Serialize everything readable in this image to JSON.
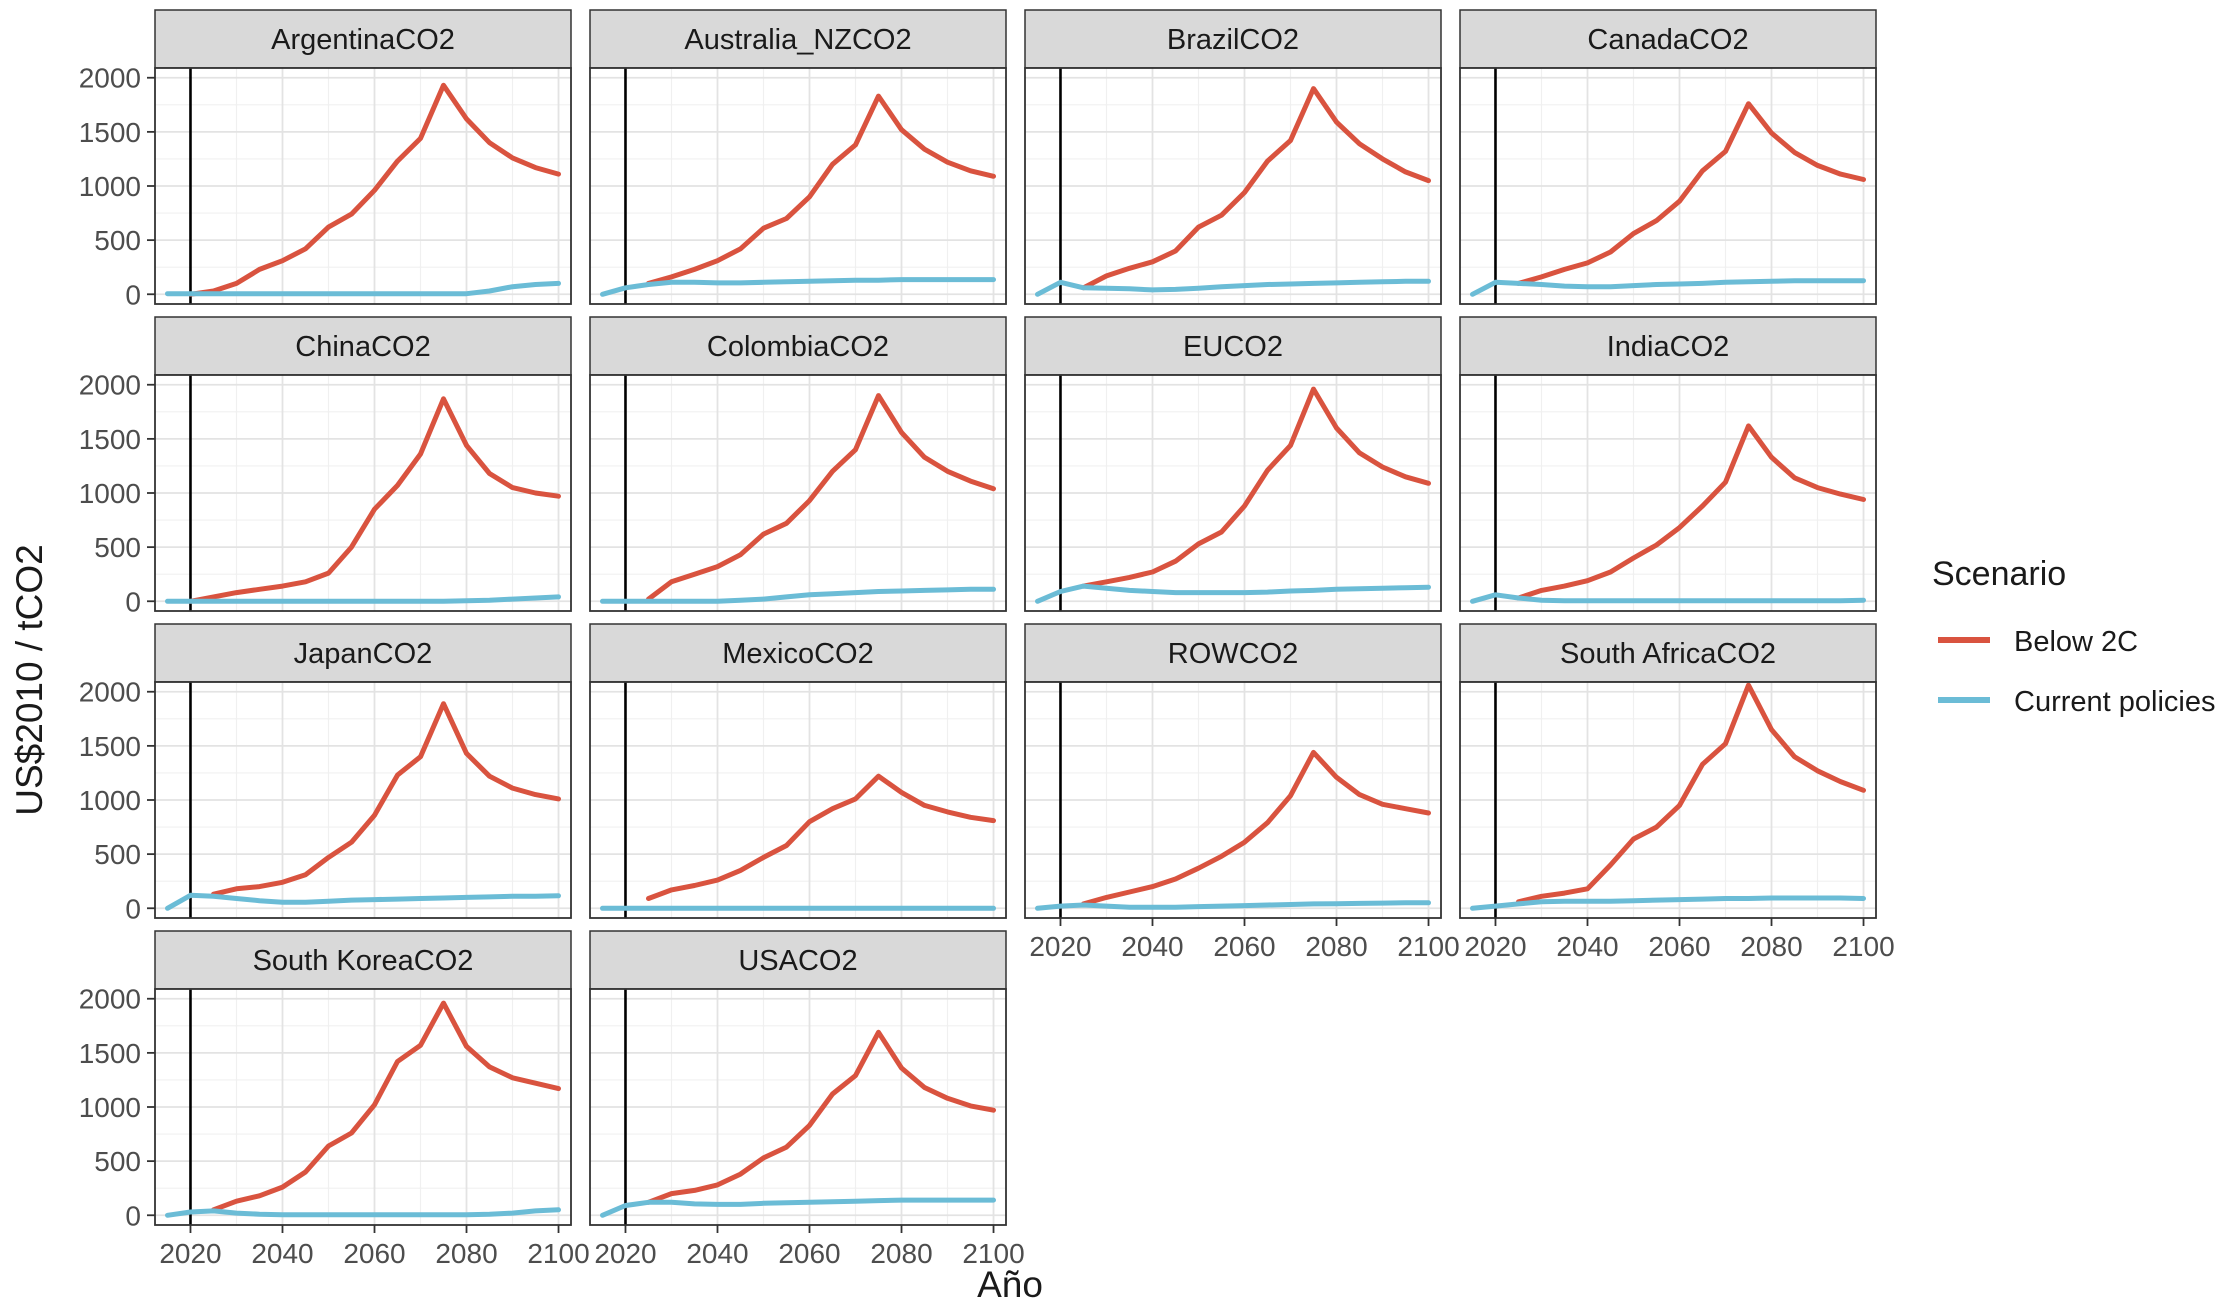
{
  "chart_data": {
    "type": "line",
    "layout": "facet-grid",
    "xlabel": "Año",
    "ylabel": "US$2010 / tCO2",
    "xlim": [
      2015,
      2100
    ],
    "ylim": [
      0,
      2000
    ],
    "x_ticks": [
      2020,
      2040,
      2060,
      2080,
      2100
    ],
    "y_ticks": [
      0,
      500,
      1000,
      1500,
      2000
    ],
    "reference_line_x": 2020,
    "grid": true,
    "legend": {
      "title": "Scenario",
      "position": "right",
      "items": [
        {
          "name": "Below 2C",
          "color": "#d9533f"
        },
        {
          "name": "Current policies",
          "color": "#6bbcd6"
        }
      ]
    },
    "x": [
      2015,
      2020,
      2025,
      2030,
      2035,
      2040,
      2045,
      2050,
      2055,
      2060,
      2065,
      2070,
      2075,
      2080,
      2085,
      2090,
      2095,
      2100
    ],
    "panels": [
      {
        "title": "ArgentinaCO2",
        "series": [
          {
            "name": "Below 2C",
            "values": [
              null,
              0,
              30,
              100,
              230,
              310,
              420,
              620,
              740,
              960,
              1230,
              1440,
              1930,
              1620,
              1400,
              1260,
              1170,
              1110
            ]
          },
          {
            "name": "Current policies",
            "values": [
              5,
              5,
              5,
              5,
              5,
              5,
              5,
              5,
              5,
              5,
              5,
              5,
              5,
              5,
              30,
              70,
              90,
              100
            ]
          }
        ]
      },
      {
        "title": "Australia_NZCO2",
        "series": [
          {
            "name": "Below 2C",
            "values": [
              null,
              null,
              100,
              160,
              230,
              310,
              420,
              610,
              700,
              900,
              1200,
              1380,
              1830,
              1520,
              1340,
              1220,
              1140,
              1090
            ]
          },
          {
            "name": "Current policies",
            "values": [
              0,
              60,
              90,
              110,
              110,
              105,
              105,
              110,
              115,
              120,
              125,
              130,
              130,
              135,
              135,
              135,
              135,
              135
            ]
          }
        ]
      },
      {
        "title": "BrazilCO2",
        "series": [
          {
            "name": "Below 2C",
            "values": [
              null,
              null,
              60,
              170,
              240,
              300,
              400,
              620,
              730,
              940,
              1230,
              1420,
              1900,
              1590,
              1390,
              1250,
              1130,
              1050
            ]
          },
          {
            "name": "Current policies",
            "values": [
              0,
              110,
              60,
              55,
              50,
              40,
              45,
              55,
              70,
              80,
              90,
              95,
              100,
              105,
              110,
              115,
              120,
              120
            ]
          }
        ]
      },
      {
        "title": "CanadaCO2",
        "series": [
          {
            "name": "Below 2C",
            "values": [
              null,
              null,
              100,
              160,
              230,
              290,
              390,
              560,
              680,
              860,
              1140,
              1320,
              1760,
              1490,
              1310,
              1190,
              1110,
              1060
            ]
          },
          {
            "name": "Current policies",
            "values": [
              0,
              110,
              100,
              90,
              75,
              70,
              70,
              80,
              90,
              95,
              100,
              110,
              115,
              120,
              125,
              125,
              125,
              125
            ]
          }
        ]
      },
      {
        "title": "ChinaCO2",
        "series": [
          {
            "name": "Below 2C",
            "values": [
              null,
              0,
              40,
              80,
              110,
              140,
              180,
              260,
              500,
              850,
              1070,
              1360,
              1870,
              1440,
              1180,
              1050,
              1000,
              970
            ]
          },
          {
            "name": "Current policies",
            "values": [
              0,
              0,
              0,
              0,
              0,
              0,
              0,
              0,
              0,
              0,
              0,
              0,
              0,
              5,
              10,
              20,
              30,
              40
            ]
          }
        ]
      },
      {
        "title": "ColombiaCO2",
        "series": [
          {
            "name": "Below 2C",
            "values": [
              null,
              null,
              20,
              180,
              250,
              320,
              430,
              620,
              720,
              930,
              1200,
              1400,
              1900,
              1560,
              1330,
              1200,
              1110,
              1040
            ]
          },
          {
            "name": "Current policies",
            "values": [
              0,
              0,
              0,
              0,
              0,
              0,
              10,
              20,
              40,
              60,
              70,
              80,
              90,
              95,
              100,
              105,
              110,
              110
            ]
          }
        ]
      },
      {
        "title": "EUCO2",
        "series": [
          {
            "name": "Below 2C",
            "values": [
              null,
              null,
              140,
              180,
              220,
              270,
              370,
              530,
              640,
              880,
              1210,
              1440,
              1960,
              1600,
              1370,
              1240,
              1150,
              1090
            ]
          },
          {
            "name": "Current policies",
            "values": [
              0,
              90,
              140,
              120,
              100,
              90,
              80,
              80,
              80,
              80,
              85,
              95,
              100,
              110,
              115,
              120,
              125,
              130
            ]
          }
        ]
      },
      {
        "title": "IndiaCO2",
        "series": [
          {
            "name": "Below 2C",
            "values": [
              null,
              null,
              30,
              100,
              140,
              190,
              270,
              400,
              520,
              680,
              880,
              1100,
              1620,
              1330,
              1140,
              1050,
              990,
              940
            ]
          },
          {
            "name": "Current policies",
            "values": [
              0,
              60,
              30,
              10,
              5,
              5,
              5,
              5,
              5,
              5,
              5,
              5,
              5,
              5,
              5,
              5,
              5,
              10
            ]
          }
        ]
      },
      {
        "title": "JapanCO2",
        "series": [
          {
            "name": "Below 2C",
            "values": [
              null,
              null,
              130,
              180,
              200,
              240,
              310,
              470,
              610,
              860,
              1230,
              1400,
              1890,
              1430,
              1220,
              1110,
              1050,
              1010
            ]
          },
          {
            "name": "Current policies",
            "values": [
              0,
              120,
              110,
              90,
              70,
              55,
              55,
              65,
              75,
              80,
              85,
              90,
              95,
              100,
              105,
              110,
              110,
              115
            ]
          }
        ]
      },
      {
        "title": "MexicoCO2",
        "series": [
          {
            "name": "Below 2C",
            "values": [
              null,
              null,
              90,
              170,
              210,
              260,
              350,
              470,
              580,
              800,
              920,
              1010,
              1220,
              1070,
              950,
              890,
              840,
              810
            ]
          },
          {
            "name": "Current policies",
            "values": [
              0,
              0,
              0,
              0,
              0,
              0,
              0,
              0,
              0,
              0,
              0,
              0,
              0,
              0,
              0,
              0,
              0,
              0
            ]
          }
        ]
      },
      {
        "title": "ROWCO2",
        "series": [
          {
            "name": "Below 2C",
            "values": [
              null,
              null,
              40,
              100,
              150,
              200,
              270,
              370,
              480,
              610,
              790,
              1040,
              1440,
              1210,
              1050,
              960,
              920,
              880
            ]
          },
          {
            "name": "Current policies",
            "values": [
              0,
              20,
              30,
              20,
              10,
              10,
              10,
              15,
              20,
              25,
              30,
              35,
              40,
              42,
              45,
              48,
              50,
              50
            ]
          }
        ]
      },
      {
        "title": "South AfricaCO2",
        "series": [
          {
            "name": "Below 2C",
            "values": [
              null,
              null,
              60,
              110,
              140,
              180,
              400,
              640,
              750,
              950,
              1330,
              1520,
              2060,
              1650,
              1400,
              1270,
              1170,
              1090
            ]
          },
          {
            "name": "Current policies",
            "values": [
              0,
              20,
              40,
              60,
              65,
              65,
              65,
              70,
              75,
              80,
              85,
              90,
              90,
              95,
              95,
              95,
              95,
              90
            ]
          }
        ]
      },
      {
        "title": "South KoreaCO2",
        "series": [
          {
            "name": "Below 2C",
            "values": [
              null,
              null,
              50,
              130,
              180,
              260,
              400,
              640,
              760,
              1020,
              1420,
              1570,
              1960,
              1560,
              1370,
              1270,
              1220,
              1170
            ]
          },
          {
            "name": "Current policies",
            "values": [
              0,
              30,
              40,
              20,
              10,
              5,
              5,
              5,
              5,
              5,
              5,
              5,
              5,
              5,
              10,
              20,
              40,
              50
            ]
          }
        ]
      },
      {
        "title": "USACO2",
        "series": [
          {
            "name": "Below 2C",
            "values": [
              null,
              null,
              120,
              200,
              230,
              280,
              380,
              530,
              630,
              830,
              1120,
              1290,
              1690,
              1360,
              1180,
              1080,
              1010,
              970
            ]
          },
          {
            "name": "Current policies",
            "values": [
              0,
              90,
              120,
              120,
              105,
              100,
              100,
              110,
              115,
              120,
              125,
              130,
              135,
              140,
              140,
              140,
              140,
              140
            ]
          }
        ]
      }
    ]
  }
}
